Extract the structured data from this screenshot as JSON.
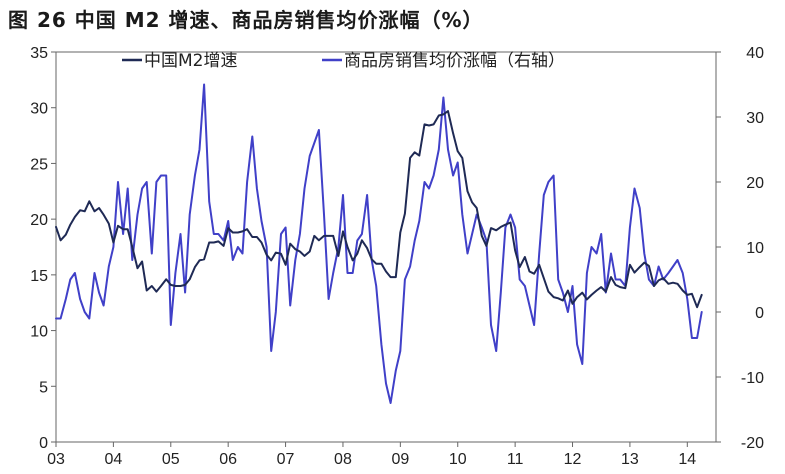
{
  "chart_data": {
    "type": "line",
    "title": "图 26 中国 M2 增速、商品房销售均价涨幅（%）",
    "x_tick_labels": [
      "03",
      "04",
      "05",
      "06",
      "07",
      "08",
      "09",
      "10",
      "11",
      "12",
      "13",
      "14"
    ],
    "left_axis": {
      "ylim": [
        0,
        35
      ],
      "ticks": [
        "0",
        "5",
        "10",
        "15",
        "20",
        "25",
        "30",
        "35"
      ]
    },
    "right_axis": {
      "ylim": [
        -20,
        40
      ],
      "ticks": [
        "-20",
        "-10",
        "0",
        "10",
        "20",
        "30",
        "40"
      ]
    },
    "legend": {
      "placement": "top-center"
    },
    "series": [
      {
        "name": "中国M2增速",
        "axis": "left",
        "color": "#1f2a55",
        "x": [
          2003.0,
          2003.08,
          2003.17,
          2003.25,
          2003.33,
          2003.42,
          2003.5,
          2003.58,
          2003.67,
          2003.75,
          2003.83,
          2003.92,
          2004.0,
          2004.08,
          2004.17,
          2004.25,
          2004.33,
          2004.42,
          2004.5,
          2004.58,
          2004.67,
          2004.75,
          2004.83,
          2004.92,
          2005.0,
          2005.08,
          2005.17,
          2005.25,
          2005.33,
          2005.42,
          2005.5,
          2005.58,
          2005.67,
          2005.75,
          2005.83,
          2005.92,
          2006.0,
          2006.08,
          2006.17,
          2006.25,
          2006.33,
          2006.42,
          2006.5,
          2006.58,
          2006.67,
          2006.75,
          2006.83,
          2006.92,
          2007.0,
          2007.08,
          2007.17,
          2007.25,
          2007.33,
          2007.42,
          2007.5,
          2007.58,
          2007.67,
          2007.75,
          2007.83,
          2007.92,
          2008.0,
          2008.08,
          2008.17,
          2008.25,
          2008.33,
          2008.42,
          2008.5,
          2008.58,
          2008.67,
          2008.75,
          2008.83,
          2008.92,
          2009.0,
          2009.08,
          2009.17,
          2009.25,
          2009.33,
          2009.42,
          2009.5,
          2009.58,
          2009.67,
          2009.75,
          2009.83,
          2009.92,
          2010.0,
          2010.08,
          2010.17,
          2010.25,
          2010.33,
          2010.42,
          2010.5,
          2010.58,
          2010.67,
          2010.75,
          2010.83,
          2010.92,
          2011.0,
          2011.08,
          2011.17,
          2011.25,
          2011.33,
          2011.42,
          2011.5,
          2011.58,
          2011.67,
          2011.75,
          2011.83,
          2011.92,
          2012.0,
          2012.08,
          2012.17,
          2012.25,
          2012.33,
          2012.42,
          2012.5,
          2012.58,
          2012.67,
          2012.75,
          2012.83,
          2012.92,
          2013.0,
          2013.08,
          2013.17,
          2013.25,
          2013.33,
          2013.42,
          2013.5,
          2013.58,
          2013.67,
          2013.75,
          2013.83,
          2013.92,
          2014.0,
          2014.08,
          2014.17,
          2014.25
        ],
        "values": [
          19.3,
          18.1,
          18.6,
          19.5,
          20.2,
          20.8,
          20.7,
          21.6,
          20.7,
          21.0,
          20.4,
          19.6,
          17.9,
          19.4,
          19.1,
          19.1,
          17.5,
          15.6,
          16.2,
          13.6,
          14.0,
          13.5,
          14.0,
          14.6,
          14.1,
          14.0,
          14.0,
          14.1,
          14.6,
          15.7,
          16.3,
          16.4,
          17.9,
          17.9,
          18.0,
          17.6,
          19.2,
          18.8,
          18.8,
          18.9,
          19.1,
          18.4,
          18.4,
          17.9,
          16.8,
          16.3,
          17.0,
          16.9,
          15.9,
          17.8,
          17.3,
          17.1,
          16.7,
          17.1,
          18.5,
          18.1,
          18.5,
          18.5,
          18.5,
          16.7,
          18.9,
          17.5,
          16.3,
          16.9,
          18.1,
          17.4,
          16.4,
          16.0,
          16.0,
          15.3,
          14.8,
          14.8,
          18.8,
          20.5,
          25.5,
          26.0,
          25.7,
          28.5,
          28.4,
          28.5,
          29.3,
          29.4,
          29.7,
          27.7,
          26.1,
          25.5,
          22.5,
          21.5,
          21.0,
          18.5,
          17.6,
          19.2,
          19.0,
          19.3,
          19.5,
          19.7,
          17.2,
          15.7,
          16.6,
          15.3,
          15.1,
          15.9,
          14.7,
          13.5,
          13.0,
          12.9,
          12.7,
          13.6,
          12.4,
          13.0,
          13.4,
          12.8,
          13.2,
          13.6,
          13.9,
          13.5,
          14.8,
          14.1,
          13.9,
          13.8,
          15.9,
          15.2,
          15.7,
          16.1,
          15.8,
          14.0,
          14.5,
          14.7,
          14.2,
          14.3,
          14.2,
          13.6,
          13.2,
          13.3,
          12.1,
          13.2
        ]
      },
      {
        "name": "商品房销售均价涨幅（右轴）",
        "axis": "right",
        "color": "#4040c8",
        "x": [
          2003.0,
          2003.08,
          2003.17,
          2003.25,
          2003.33,
          2003.42,
          2003.5,
          2003.58,
          2003.67,
          2003.75,
          2003.83,
          2003.92,
          2004.0,
          2004.08,
          2004.17,
          2004.25,
          2004.33,
          2004.42,
          2004.5,
          2004.58,
          2004.67,
          2004.75,
          2004.83,
          2004.92,
          2005.0,
          2005.08,
          2005.17,
          2005.25,
          2005.33,
          2005.42,
          2005.5,
          2005.58,
          2005.67,
          2005.75,
          2005.83,
          2005.92,
          2006.0,
          2006.08,
          2006.17,
          2006.25,
          2006.33,
          2006.42,
          2006.5,
          2006.58,
          2006.67,
          2006.75,
          2006.83,
          2006.92,
          2007.0,
          2007.08,
          2007.17,
          2007.25,
          2007.33,
          2007.42,
          2007.5,
          2007.58,
          2007.67,
          2007.75,
          2007.83,
          2007.92,
          2008.0,
          2008.08,
          2008.17,
          2008.25,
          2008.33,
          2008.42,
          2008.5,
          2008.58,
          2008.67,
          2008.75,
          2008.83,
          2008.92,
          2009.0,
          2009.08,
          2009.17,
          2009.25,
          2009.33,
          2009.42,
          2009.5,
          2009.58,
          2009.67,
          2009.75,
          2009.83,
          2009.92,
          2010.0,
          2010.08,
          2010.17,
          2010.25,
          2010.33,
          2010.42,
          2010.5,
          2010.58,
          2010.67,
          2010.75,
          2010.83,
          2010.92,
          2011.0,
          2011.08,
          2011.17,
          2011.25,
          2011.33,
          2011.42,
          2011.5,
          2011.58,
          2011.67,
          2011.75,
          2011.83,
          2011.92,
          2012.0,
          2012.08,
          2012.17,
          2012.25,
          2012.33,
          2012.42,
          2012.5,
          2012.58,
          2012.67,
          2012.75,
          2012.83,
          2012.92,
          2013.0,
          2013.08,
          2013.17,
          2013.25,
          2013.33,
          2013.42,
          2013.5,
          2013.58,
          2013.67,
          2013.75,
          2013.83,
          2013.92,
          2014.0,
          2014.08,
          2014.17,
          2014.25
        ],
        "values": [
          -1,
          -1,
          2,
          5,
          6,
          2,
          0,
          -1,
          6,
          3,
          1,
          7,
          10,
          20,
          12,
          19,
          8,
          15,
          19,
          20,
          9,
          20,
          21,
          21,
          -2,
          6,
          12,
          3,
          15,
          21,
          25,
          35,
          17,
          12,
          12,
          11,
          14,
          8,
          10,
          9,
          20,
          27,
          19,
          14,
          10,
          -6,
          0,
          12,
          13,
          1,
          8,
          12,
          19,
          24,
          26,
          28,
          15,
          2,
          6,
          10,
          18,
          6,
          6,
          11,
          12,
          18,
          8,
          4,
          -5,
          -11,
          -14,
          -9,
          -6,
          5,
          7,
          11,
          14,
          20,
          19,
          21,
          25,
          33,
          25,
          21,
          23,
          15,
          9,
          12,
          15,
          13,
          11,
          -2,
          -6,
          3,
          13,
          15,
          13,
          5,
          4,
          1,
          -2,
          9,
          18,
          20,
          21,
          5,
          3,
          0,
          4,
          -5,
          -8,
          6,
          10,
          9,
          12,
          3,
          9,
          5,
          5,
          4,
          13,
          19,
          16,
          9,
          5,
          4,
          7,
          5,
          6,
          7,
          8,
          6,
          2,
          -4,
          -4,
          0
        ]
      }
    ]
  }
}
